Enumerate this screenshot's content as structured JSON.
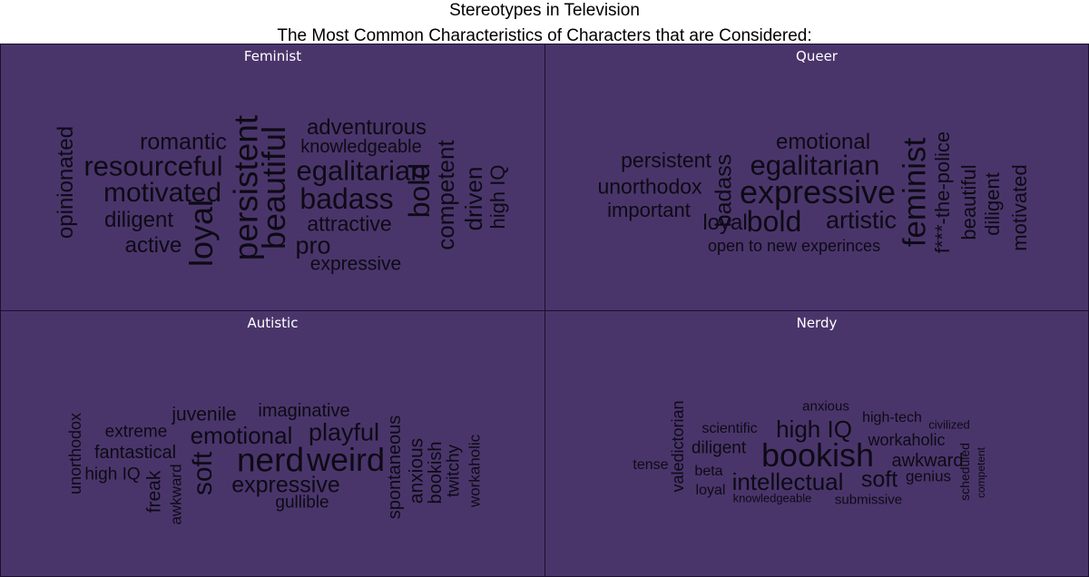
{
  "title": "Stereotypes in Television",
  "subtitle": "The Most Common Characteristics of Characters that are Considered:",
  "colors": {
    "panel_bg": "#4a356b",
    "border": "#1a1030",
    "text": "#0d0a14",
    "panel_title": "#ffffff"
  },
  "chart_data": {
    "type": "wordcloud",
    "panels": [
      {
        "title": "Feminist",
        "words": [
          {
            "text": "opinionated",
            "rotate": true
          },
          {
            "text": "romantic",
            "rotate": false
          },
          {
            "text": "resourceful",
            "rotate": false
          },
          {
            "text": "motivated",
            "rotate": false
          },
          {
            "text": "diligent",
            "rotate": false
          },
          {
            "text": "active",
            "rotate": false
          },
          {
            "text": "loyal",
            "rotate": true
          },
          {
            "text": "persistent",
            "rotate": true
          },
          {
            "text": "beautiful",
            "rotate": true
          },
          {
            "text": "adventurous",
            "rotate": false
          },
          {
            "text": "knowledgeable",
            "rotate": false
          },
          {
            "text": "egalitarian",
            "rotate": false
          },
          {
            "text": "badass",
            "rotate": false
          },
          {
            "text": "attractive",
            "rotate": false
          },
          {
            "text": "pro",
            "rotate": false
          },
          {
            "text": "expressive",
            "rotate": false
          },
          {
            "text": "bold",
            "rotate": true
          },
          {
            "text": "competent",
            "rotate": true
          },
          {
            "text": "driven",
            "rotate": true
          },
          {
            "text": "high IQ",
            "rotate": true
          }
        ]
      },
      {
        "title": "Queer",
        "words": [
          {
            "text": "persistent",
            "rotate": false
          },
          {
            "text": "unorthodox",
            "rotate": false
          },
          {
            "text": "important",
            "rotate": false
          },
          {
            "text": "badass",
            "rotate": true
          },
          {
            "text": "emotional",
            "rotate": false
          },
          {
            "text": "egalitarian",
            "rotate": false
          },
          {
            "text": "expressive",
            "rotate": false
          },
          {
            "text": "loyal",
            "rotate": false
          },
          {
            "text": "bold",
            "rotate": false
          },
          {
            "text": "artistic",
            "rotate": false
          },
          {
            "text": "open to new experinces",
            "rotate": false
          },
          {
            "text": "feminist",
            "rotate": true
          },
          {
            "text": "f***-the-police",
            "rotate": true
          },
          {
            "text": "beautiful",
            "rotate": true
          },
          {
            "text": "diligent",
            "rotate": true
          },
          {
            "text": "motivated",
            "rotate": true
          }
        ]
      },
      {
        "title": "Autistic",
        "words": [
          {
            "text": "unorthodox",
            "rotate": true
          },
          {
            "text": "extreme",
            "rotate": false
          },
          {
            "text": "fantastical",
            "rotate": false
          },
          {
            "text": "high IQ",
            "rotate": false
          },
          {
            "text": "freak",
            "rotate": true
          },
          {
            "text": "awkward",
            "rotate": true
          },
          {
            "text": "soft",
            "rotate": true
          },
          {
            "text": "juvenile",
            "rotate": false
          },
          {
            "text": "imaginative",
            "rotate": false
          },
          {
            "text": "emotional",
            "rotate": false
          },
          {
            "text": "playful",
            "rotate": false
          },
          {
            "text": "nerd",
            "rotate": false
          },
          {
            "text": "weird",
            "rotate": false
          },
          {
            "text": "expressive",
            "rotate": false
          },
          {
            "text": "gullible",
            "rotate": false
          },
          {
            "text": "spontaneous",
            "rotate": true
          },
          {
            "text": "anxious",
            "rotate": true
          },
          {
            "text": "bookish",
            "rotate": true
          },
          {
            "text": "twitchy",
            "rotate": true
          },
          {
            "text": "workaholic",
            "rotate": true
          }
        ]
      },
      {
        "title": "Nerdy",
        "words": [
          {
            "text": "tense",
            "rotate": false
          },
          {
            "text": "valedictorian",
            "rotate": true
          },
          {
            "text": "scientific",
            "rotate": false
          },
          {
            "text": "diligent",
            "rotate": false
          },
          {
            "text": "beta",
            "rotate": false
          },
          {
            "text": "loyal",
            "rotate": false
          },
          {
            "text": "anxious",
            "rotate": false
          },
          {
            "text": "high IQ",
            "rotate": false
          },
          {
            "text": "bookish",
            "rotate": false
          },
          {
            "text": "intellectual",
            "rotate": false
          },
          {
            "text": "knowledgeable",
            "rotate": false
          },
          {
            "text": "soft",
            "rotate": false
          },
          {
            "text": "submissive",
            "rotate": false
          },
          {
            "text": "high-tech",
            "rotate": false
          },
          {
            "text": "civilized",
            "rotate": false
          },
          {
            "text": "workaholic",
            "rotate": false
          },
          {
            "text": "awkward",
            "rotate": false
          },
          {
            "text": "genius",
            "rotate": false
          },
          {
            "text": "scheduled",
            "rotate": true
          },
          {
            "text": "competent",
            "rotate": true
          }
        ]
      }
    ]
  }
}
